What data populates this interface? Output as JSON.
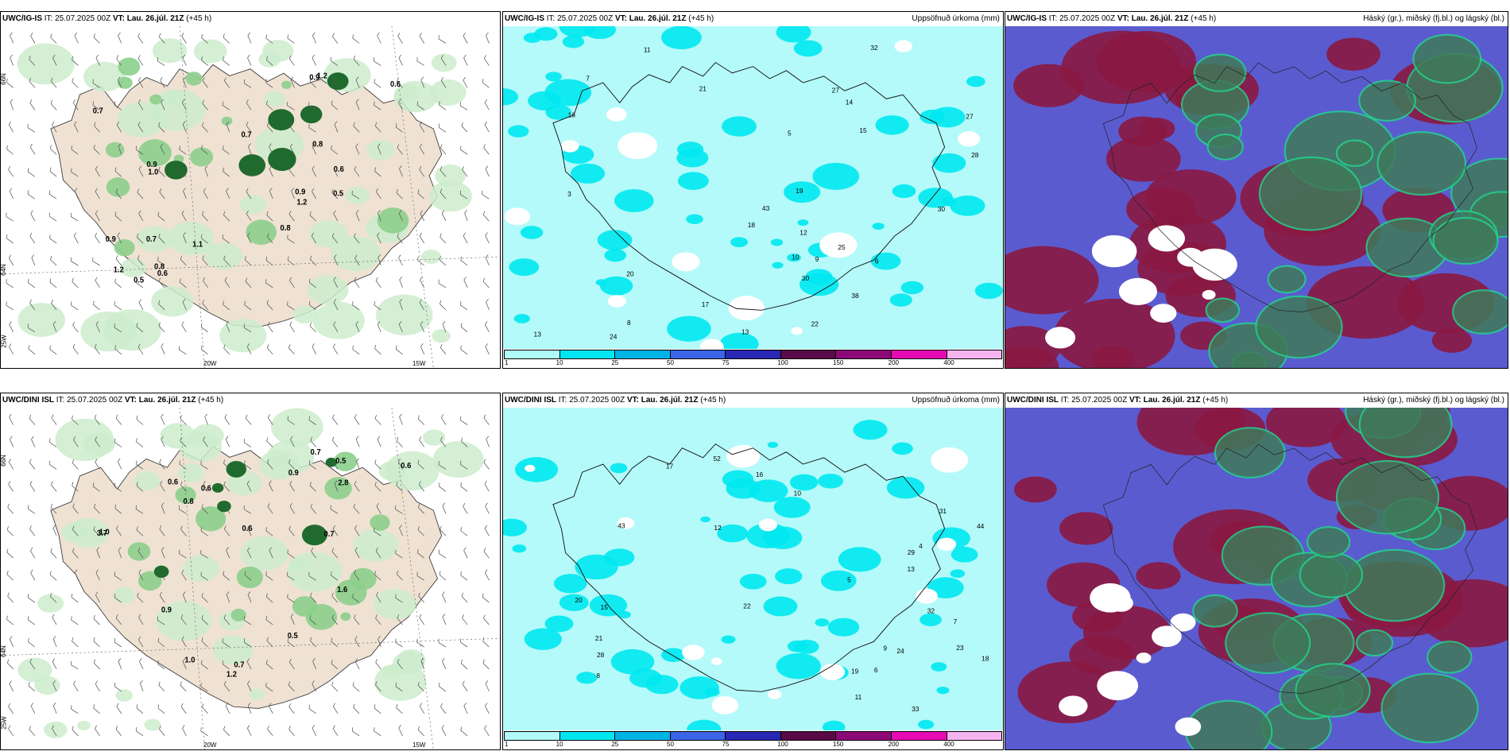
{
  "rows": [
    {
      "panels": [
        {
          "model": "UWC/IG-IS",
          "it_label": "IT:",
          "it_value": "25.07.2025 00Z",
          "vt_label": "VT:",
          "vt_value": "Lau. 26.júl. 21Z",
          "lead": "(+45 h)",
          "right_title": "",
          "type": "precip-rate-wind"
        },
        {
          "model": "UWC/IG-IS",
          "it_label": "IT:",
          "it_value": "25.07.2025 00Z",
          "vt_label": "VT:",
          "vt_value": "Lau. 26.júl. 21Z",
          "lead": "(+45 h)",
          "right_title": "Uppsöfnuð úrkoma (mm)",
          "type": "accum-precip"
        },
        {
          "model": "UWC/IG-IS",
          "it_label": "IT:",
          "it_value": "25.07.2025 00Z",
          "vt_label": "VT:",
          "vt_value": "Lau. 26.júl. 21Z",
          "lead": "(+45 h)",
          "right_title": "Háský (gr.), miðský (fj.bl.) og lágský (bl.)",
          "type": "clouds"
        }
      ]
    },
    {
      "panels": [
        {
          "model": "UWC/DINI ISL",
          "it_label": "IT:",
          "it_value": "25.07.2025 00Z",
          "vt_label": "VT:",
          "vt_value": "Lau. 26.júl. 21Z",
          "lead": "(+45 h)",
          "right_title": "",
          "type": "precip-rate-wind"
        },
        {
          "model": "UWC/DINI ISL",
          "it_label": "IT:",
          "it_value": "25.07.2025 00Z",
          "vt_label": "VT:",
          "vt_value": "Lau. 26.júl. 21Z",
          "lead": "(+45 h)",
          "right_title": "Uppsöfnuð úrkoma (mm)",
          "type": "accum-precip"
        },
        {
          "model": "UWC/DINI ISL",
          "it_label": "IT:",
          "it_value": "25.07.2025 00Z",
          "vt_label": "VT:",
          "vt_value": "Lau. 26.júl. 21Z",
          "lead": "(+45 h)",
          "right_title": "Háský (gr.), miðský (fj.bl.) og lágský (bl.)",
          "type": "clouds"
        }
      ]
    }
  ],
  "axis_labels": {
    "lon_20w": "20W",
    "lon_15w": "15W",
    "lat_66n": "66N",
    "lat_64n": "64N",
    "lat_25w": "25W"
  },
  "colorbar": {
    "ticks": [
      "1",
      "10",
      "25",
      "50",
      "75",
      "100",
      "150",
      "200",
      "400"
    ],
    "colors": [
      "#b0fafa",
      "#00e6f0",
      "#00b4e6",
      "#3c64e6",
      "#2828b4",
      "#5a0a46",
      "#8c0a78",
      "#e60ab4",
      "#f5b4f0"
    ]
  },
  "precip_labels_top": [
    "0.9",
    "1.0",
    "0.8",
    "1.2",
    "0.7",
    "0.8",
    "0.9",
    "1.2",
    "1.1",
    "0.6",
    "0.5",
    "0.8",
    "0.7",
    "0.6",
    "1.2",
    "0.9",
    "0.6",
    "0.5",
    "0.9",
    "0.7"
  ],
  "precip_labels_bottom": [
    "0.9",
    "0.7",
    "0.6",
    "0.8",
    "1.0",
    "2.8",
    "3.7",
    "0.6",
    "1.2",
    "0.7",
    "0.9",
    "0.5",
    "1.6",
    "0.5",
    "0.7",
    "0.6",
    "1.0",
    "0.6"
  ],
  "accum_labels_top": [
    "16",
    "13",
    "14",
    "11",
    "28",
    "27",
    "32",
    "20",
    "43",
    "30",
    "19",
    "10",
    "13",
    "17",
    "24",
    "18",
    "27",
    "25",
    "30",
    "22",
    "21",
    "38",
    "15",
    "9",
    "7",
    "12",
    "6",
    "8",
    "5",
    "3"
  ],
  "accum_labels_bottom": [
    "11",
    "13",
    "7",
    "18",
    "15",
    "23",
    "24",
    "33",
    "19",
    "16",
    "8",
    "10",
    "12",
    "22",
    "31",
    "32",
    "20",
    "44",
    "43",
    "52",
    "21",
    "6",
    "5",
    "9",
    "4",
    "17",
    "28",
    "29"
  ],
  "colors": {
    "land": "#efe2d3",
    "sea": "#ffffff",
    "precip_light": "#cdeccd",
    "precip_mid": "#8ccf8c",
    "precip_dark": "#1f6b2e",
    "accum_base": "#b4fafa",
    "accum_mid": "#00e8f0",
    "cloud_high": "#3f7a5a",
    "cloud_mid": "#8a1840",
    "cloud_low": "#5b5bd0",
    "cloud_edge": "#22d28c"
  }
}
